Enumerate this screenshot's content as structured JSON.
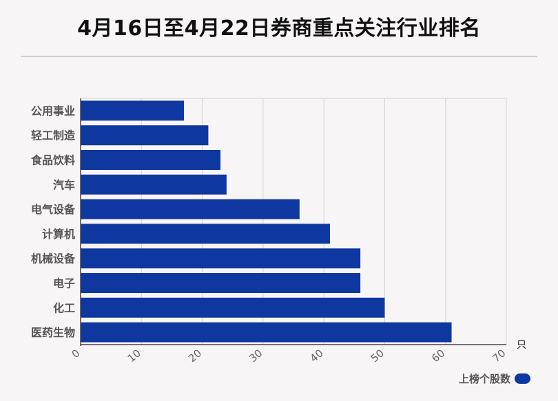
{
  "title": "4月16日至4月22日券商重点关注行业排名",
  "chart_data": {
    "type": "bar",
    "orientation": "horizontal",
    "categories": [
      "公用事业",
      "轻工制造",
      "食品饮料",
      "汽车",
      "电气设备",
      "计算机",
      "机械设备",
      "电子",
      "化工",
      "医药生物"
    ],
    "series": [
      {
        "name": "上榜个股数",
        "values": [
          17,
          21,
          23,
          24,
          36,
          41,
          46,
          46,
          50,
          61
        ],
        "color": "#0f37a0"
      }
    ],
    "xlim": [
      0,
      70
    ],
    "xticks": [
      "0",
      "10",
      "20",
      "30",
      "40",
      "50",
      "60",
      "70"
    ],
    "x_unit": "只",
    "grid": true,
    "legend_position": "bottom-right"
  }
}
